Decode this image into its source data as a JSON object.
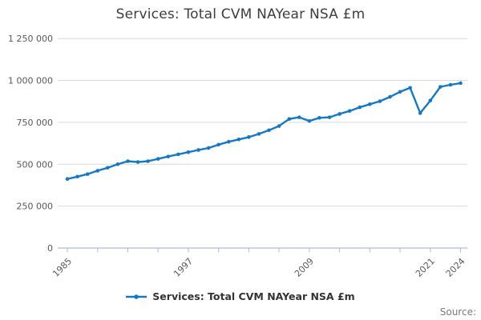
{
  "title": "Services: Total CVM NAYear NSA £m",
  "legend": {
    "label": "Services: Total CVM NAYear NSA £m"
  },
  "source_label": "Source:",
  "colors": {
    "line": "#1778c2",
    "grid": "#d9d9d9",
    "axis": "#aebcd9",
    "title_text": "#3d3d3d",
    "tick_text": "#595959",
    "legend_text": "#333333",
    "source_text": "#7a7a7a"
  },
  "chart_data": {
    "type": "line",
    "title": "Services: Total CVM NAYear NSA £m",
    "xlabel": "",
    "ylabel": "",
    "xlim": [
      1985,
      2024
    ],
    "ylim": [
      0,
      1250000
    ],
    "grid": "horizontal",
    "legend_position": "bottom-center",
    "x": [
      1985,
      1986,
      1987,
      1988,
      1989,
      1990,
      1991,
      1992,
      1993,
      1994,
      1995,
      1996,
      1997,
      1998,
      1999,
      2000,
      2001,
      2002,
      2003,
      2004,
      2005,
      2006,
      2007,
      2008,
      2009,
      2010,
      2011,
      2012,
      2013,
      2014,
      2015,
      2016,
      2017,
      2018,
      2019,
      2020,
      2021,
      2022,
      2023,
      2024
    ],
    "series": [
      {
        "name": "Services: Total CVM NAYear NSA £m",
        "color": "#1778c2",
        "values": [
          412000,
          426000,
          441000,
          461000,
          479000,
          500000,
          518000,
          513000,
          518000,
          532000,
          546000,
          559000,
          572000,
          585000,
          597000,
          617000,
          634000,
          648000,
          662000,
          681000,
          703000,
          728000,
          770000,
          780000,
          758000,
          777000,
          780000,
          800000,
          818000,
          840000,
          858000,
          876000,
          902000,
          932000,
          956000,
          805000,
          880000,
          962000,
          974000,
          984000
        ]
      }
    ],
    "y_ticks": [
      {
        "value": 0,
        "label": "0"
      },
      {
        "value": 250000,
        "label": "250 000"
      },
      {
        "value": 500000,
        "label": "500 000"
      },
      {
        "value": 750000,
        "label": "750 000"
      },
      {
        "value": 1000000,
        "label": "1 000 000"
      },
      {
        "value": 1250000,
        "label": "1 250 000"
      }
    ],
    "x_tick_years": [
      1985,
      1988,
      1991,
      1994,
      1997,
      2000,
      2003,
      2006,
      2009,
      2012,
      2015,
      2018,
      2021,
      2024
    ],
    "x_labeled_years": [
      1985,
      1997,
      2009,
      2021,
      2024
    ]
  }
}
